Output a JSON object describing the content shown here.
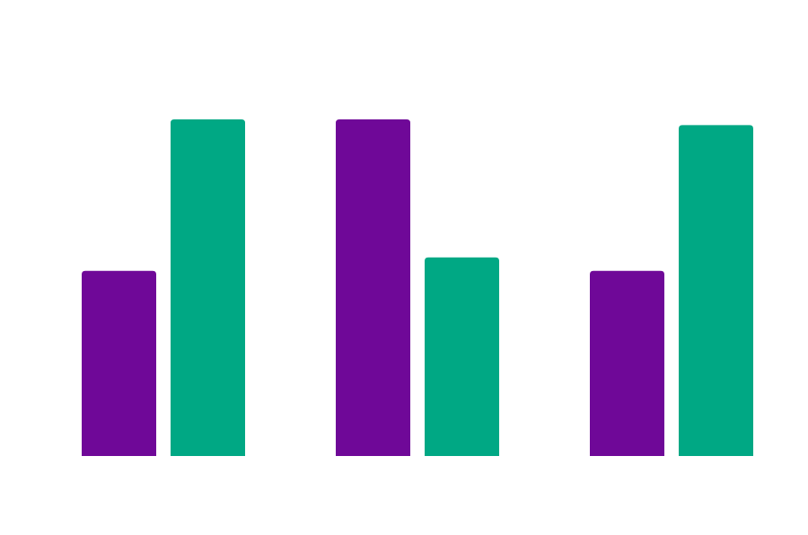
{
  "chart_data": {
    "type": "bar",
    "categories": [
      "",
      "",
      ""
    ],
    "series": [
      {
        "values": [
          0.55,
          1.0,
          0.55
        ],
        "color": "#6f0898"
      },
      {
        "values": [
          1.0,
          0.59,
          0.983
        ],
        "color": "#00a884"
      }
    ],
    "ylim": [
      0,
      1
    ],
    "grid": false,
    "legend": "none",
    "title": "",
    "xlabel": "",
    "ylabel": ""
  }
}
